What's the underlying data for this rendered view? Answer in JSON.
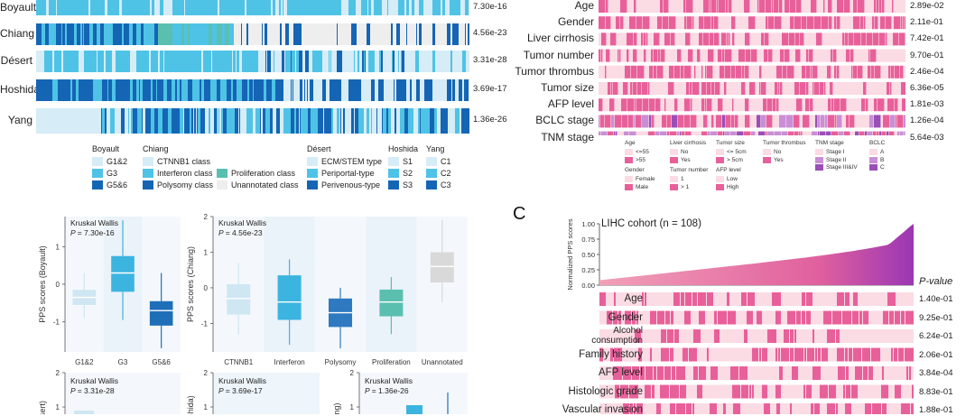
{
  "panelA": {
    "rows": [
      {
        "label": "Boyault",
        "pvalue": "7.30e-16"
      },
      {
        "label": "Chiang",
        "pvalue": "4.56e-23"
      },
      {
        "label": "Désert",
        "pvalue": "3.31e-28"
      },
      {
        "label": "Hoshida",
        "pvalue": "3.69e-17"
      },
      {
        "label": "Yang",
        "pvalue": "1.36e-26"
      }
    ],
    "legend": {
      "boyault": {
        "title": "Boyault",
        "items": [
          "G1&2",
          "G3",
          "G5&6"
        ]
      },
      "chiang": {
        "title": "Chiang",
        "items": [
          "CTNNB1 class",
          "Interferon class",
          "Polysomy class",
          "Proliferation class",
          "Unannotated class"
        ]
      },
      "desert": {
        "title": "Désert",
        "items": [
          "ECM/STEM type",
          "Periportal-type",
          "Perivenous-type"
        ]
      },
      "hoshida": {
        "title": "Hoshida",
        "items": [
          "S1",
          "S2",
          "S3"
        ]
      },
      "yang": {
        "title": "Yang",
        "items": [
          "C1",
          "C2",
          "C3"
        ]
      }
    },
    "colors": {
      "c1": "#d6ecf6",
      "c2": "#4fc3e6",
      "c3": "#1565b5",
      "teal": "#5bbfb0",
      "grey": "#eeeeee"
    }
  },
  "panelB": {
    "rows": [
      {
        "label": "Age",
        "pvalue": "2.89e-02"
      },
      {
        "label": "Gender",
        "pvalue": "2.11e-01"
      },
      {
        "label": "Liver cirrhosis",
        "pvalue": "7.42e-01"
      },
      {
        "label": "Tumor number",
        "pvalue": "9.70e-01"
      },
      {
        "label": "Tumor thrombus",
        "pvalue": "2.46e-04"
      },
      {
        "label": "Tumor size",
        "pvalue": "6.36e-05"
      },
      {
        "label": "AFP level",
        "pvalue": "1.81e-03"
      },
      {
        "label": "BCLC stage",
        "pvalue": "1.26e-04"
      },
      {
        "label": "TNM stage",
        "pvalue": "5.64e-03"
      }
    ],
    "legend": [
      {
        "title": "Age",
        "items": [
          "<=55",
          ">55"
        ]
      },
      {
        "title": "Liver cirrhosis",
        "items": [
          "No",
          "Yes"
        ]
      },
      {
        "title": "Tumor size",
        "items": [
          "<= 5cm",
          "> 5cm"
        ]
      },
      {
        "title": "Tumor thrombus",
        "items": [
          "No",
          "Yes"
        ]
      },
      {
        "title": "TNM stage",
        "items": [
          "Stage I",
          "Stage II",
          "Stage III&IV"
        ]
      },
      {
        "title": "BCLC",
        "items": [
          "A",
          "B",
          "C"
        ]
      },
      {
        "title": "Gender",
        "items": [
          "Female",
          "Male"
        ]
      },
      {
        "title": "Tumor number",
        "items": [
          "1",
          "> 1"
        ]
      },
      {
        "title": "AFP level",
        "items": [
          "Low",
          "High"
        ]
      }
    ],
    "colors": {
      "light": "#fbdbe4",
      "pink": "#e8609a",
      "purple": "#9a4fb8",
      "lavender": "#c98fd6"
    }
  },
  "panelC": {
    "letter": "C",
    "title": "LIHC cohort (n = 108)",
    "ylabel": "Normalized PPS scores",
    "yticks": [
      "1.00",
      "0.75",
      "0.50",
      "0.25",
      "0.00"
    ],
    "pvalue_header": "P-value",
    "rows": [
      {
        "label": "Age",
        "pvalue": "1.40e-01"
      },
      {
        "label": "Gender",
        "pvalue": "9.25e-01"
      },
      {
        "label": "Alcohol consumption",
        "pvalue": "6.24e-01"
      },
      {
        "label": "Family history",
        "pvalue": "2.06e-01"
      },
      {
        "label": "AFP level",
        "pvalue": "3.84e-04"
      },
      {
        "label": "Histologic grade",
        "pvalue": "8.83e-01"
      },
      {
        "label": "Vascular invasion",
        "pvalue": "1.88e-01"
      }
    ]
  },
  "boxplots": {
    "test_name": "Kruskal Wallis",
    "p_prefix": "P",
    "top": [
      {
        "ylabel": "PPS scores (Boyault)",
        "pvalue": "= 7.30e-16",
        "yticks": [
          "1",
          "0",
          "-1"
        ],
        "categories": [
          "G1&2",
          "G3",
          "G5&6"
        ]
      },
      {
        "ylabel": "PPS scores (Chiang)",
        "pvalue": "= 4.56e-23",
        "yticks": [
          "2",
          "1",
          "0",
          "-1"
        ],
        "categories": [
          "CTNNB1",
          "Interferon",
          "Polysomy",
          "Proliferation",
          "Unannotated"
        ]
      }
    ],
    "bottom": [
      {
        "ylabel": "sert)",
        "pvalue": "= 3.31e-28",
        "yticks": [
          "2",
          "1"
        ]
      },
      {
        "ylabel": "oshida)",
        "pvalue": "= 3.69e-17",
        "yticks": [
          "2",
          "1"
        ]
      },
      {
        "ylabel": "ng)",
        "pvalue": "= 1.36e-26",
        "yticks": [
          "2",
          "1"
        ]
      }
    ]
  },
  "chart_data": [
    {
      "type": "box",
      "title": "Kruskal Wallis P = 7.30e-16",
      "ylabel": "PPS scores (Boyault)",
      "categories": [
        "G1&2",
        "G3",
        "G5&6"
      ],
      "series": [
        {
          "name": "G1&2",
          "q1": -0.55,
          "median": -0.35,
          "q3": -0.15,
          "min": -0.9,
          "max": 0.3
        },
        {
          "name": "G3",
          "q1": -0.2,
          "median": 0.3,
          "q3": 0.75,
          "min": -0.95,
          "max": 1.7
        },
        {
          "name": "G5&6",
          "q1": -1.1,
          "median": -0.7,
          "q3": -0.45,
          "min": -1.7,
          "max": 0.3
        }
      ],
      "ylim": [
        -1.8,
        1.8
      ]
    },
    {
      "type": "box",
      "title": "Kruskal Wallis P = 4.56e-23",
      "ylabel": "PPS scores (Chiang)",
      "categories": [
        "CTNNB1",
        "Interferon",
        "Polysomy",
        "Proliferation",
        "Unannotated"
      ],
      "series": [
        {
          "name": "CTNNB1",
          "q1": -0.75,
          "median": -0.3,
          "q3": 0.1,
          "min": -1.3,
          "max": 0.7
        },
        {
          "name": "Interferon",
          "q1": -0.9,
          "median": -0.4,
          "q3": 0.35,
          "min": -1.6,
          "max": 0.8
        },
        {
          "name": "Polysomy",
          "q1": -1.1,
          "median": -0.7,
          "q3": -0.3,
          "min": -1.7,
          "max": 0.0
        },
        {
          "name": "Proliferation",
          "q1": -0.8,
          "median": -0.4,
          "q3": -0.05,
          "min": -1.3,
          "max": 0.3
        },
        {
          "name": "Unannotated",
          "q1": 0.15,
          "median": 0.6,
          "q3": 1.0,
          "min": -0.4,
          "max": 1.9
        }
      ],
      "ylim": [
        -1.8,
        2.0
      ]
    }
  ]
}
